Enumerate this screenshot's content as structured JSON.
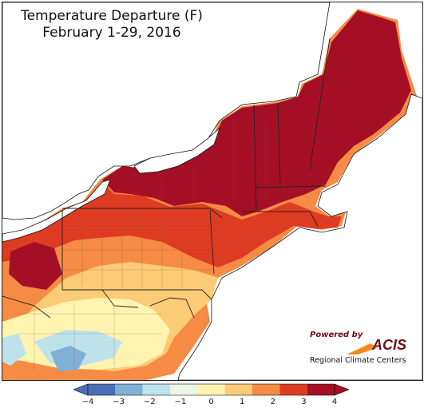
{
  "title": {
    "line1": "Temperature Departure (F)",
    "line2": "February 1-29, 2016"
  },
  "logo": {
    "powered_by": "Powered by",
    "name": "ACIS",
    "subtitle": "Regional Climate Centers"
  },
  "legend": {
    "ticks": [
      "−4",
      "−3",
      "−2",
      "−1",
      "0",
      "1",
      "2",
      "3",
      "4"
    ],
    "colors": [
      "#4a6fb5",
      "#7fb0d6",
      "#bde2ea",
      "#ebf6e9",
      "#fff3b0",
      "#fccb75",
      "#f58b45",
      "#de3c22",
      "#a50f26"
    ]
  },
  "map_colors": {
    "water": "#ffffff",
    "very_warm": "#a50f26",
    "warm": "#de3c22",
    "mild": "#f58b45",
    "slight": "#fccb75",
    "neutral": "#fff3b0",
    "cool": "#bde2ea",
    "cold": "#7fb0d6"
  }
}
